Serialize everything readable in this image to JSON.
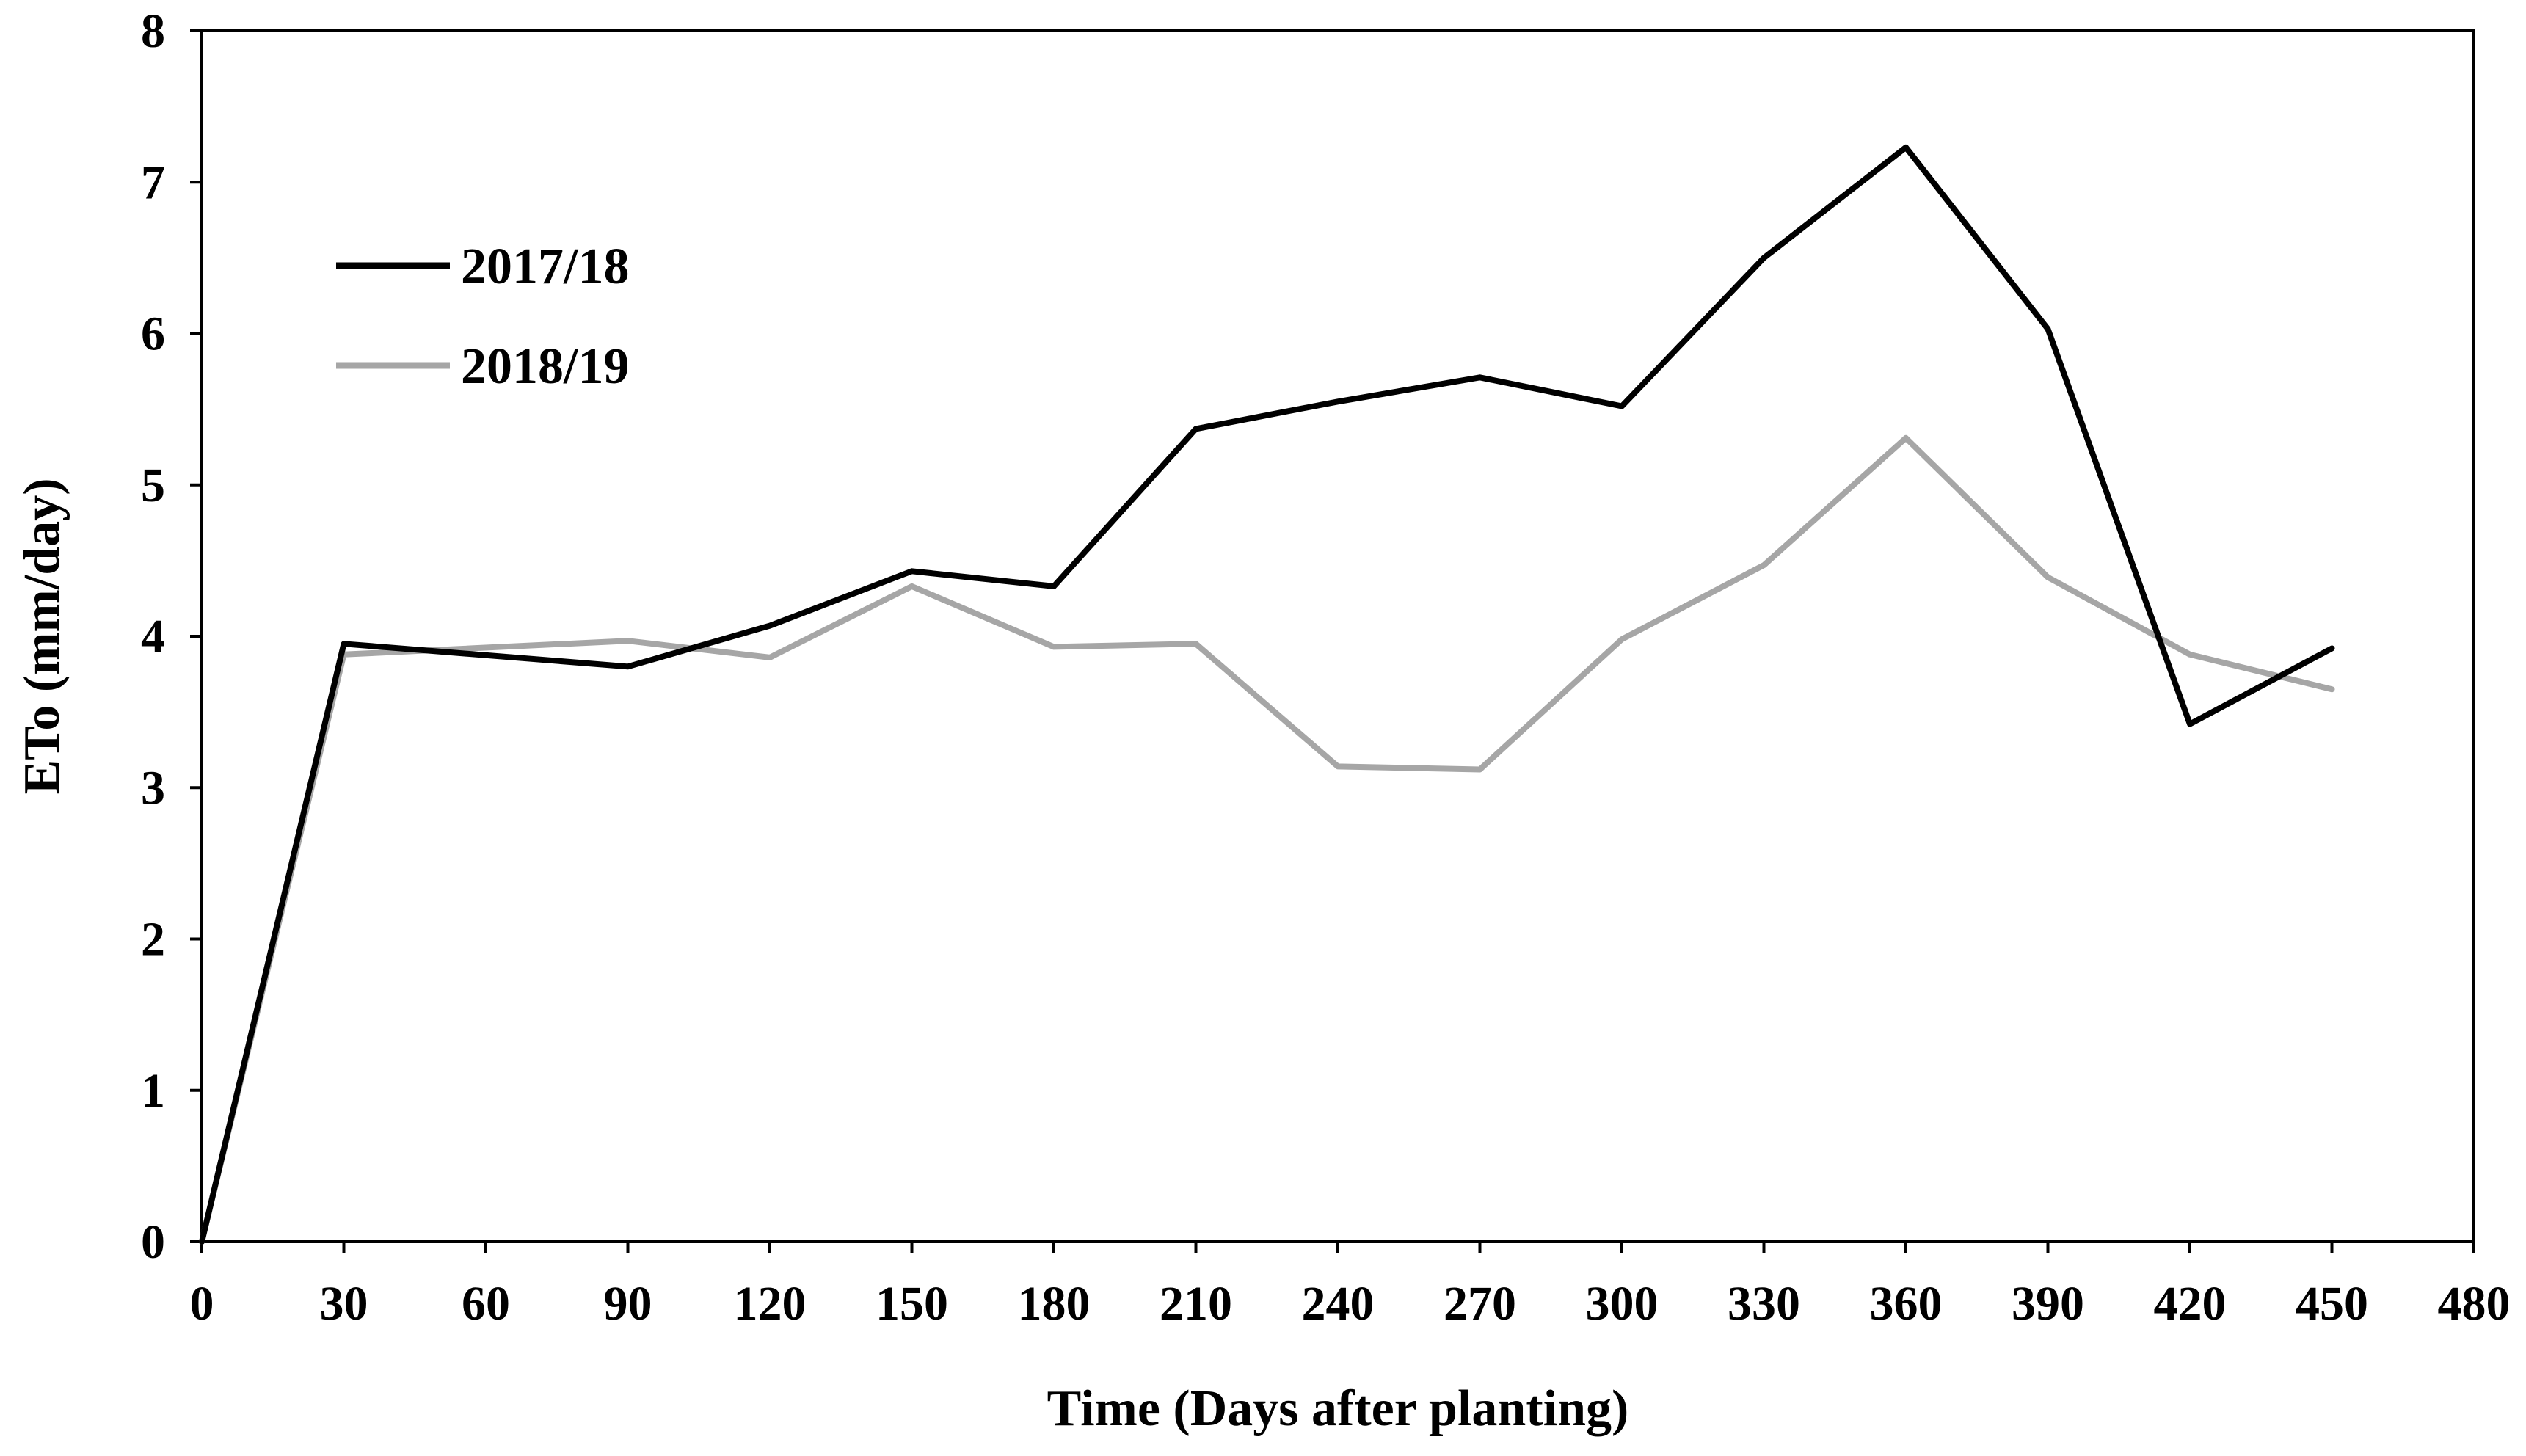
{
  "chart_data": {
    "type": "line",
    "title": "",
    "xlabel": "Time (Days after planting)",
    "ylabel": "ETo (mm/day)",
    "xlim": [
      0,
      480
    ],
    "ylim": [
      0,
      8
    ],
    "x_ticks": [
      0,
      30,
      60,
      90,
      120,
      150,
      180,
      210,
      240,
      270,
      300,
      330,
      360,
      390,
      420,
      450,
      480
    ],
    "y_ticks": [
      0,
      1,
      2,
      3,
      4,
      5,
      6,
      7,
      8
    ],
    "grid": false,
    "legend_position": "top-left",
    "x": [
      0,
      30,
      90,
      120,
      150,
      180,
      210,
      240,
      270,
      300,
      330,
      360,
      390,
      420,
      450
    ],
    "series": [
      {
        "name": "2017/18",
        "color": "#000000",
        "values": [
          0,
          3.95,
          3.8,
          4.07,
          4.43,
          4.33,
          5.37,
          5.55,
          5.71,
          5.52,
          6.5,
          7.23,
          6.03,
          3.42,
          3.92
        ]
      },
      {
        "name": "2018/19",
        "color": "#a6a6a6",
        "values": [
          0,
          3.88,
          3.97,
          3.86,
          4.33,
          3.93,
          3.95,
          3.14,
          3.12,
          3.98,
          4.47,
          5.31,
          4.39,
          3.88,
          3.65
        ]
      }
    ]
  }
}
